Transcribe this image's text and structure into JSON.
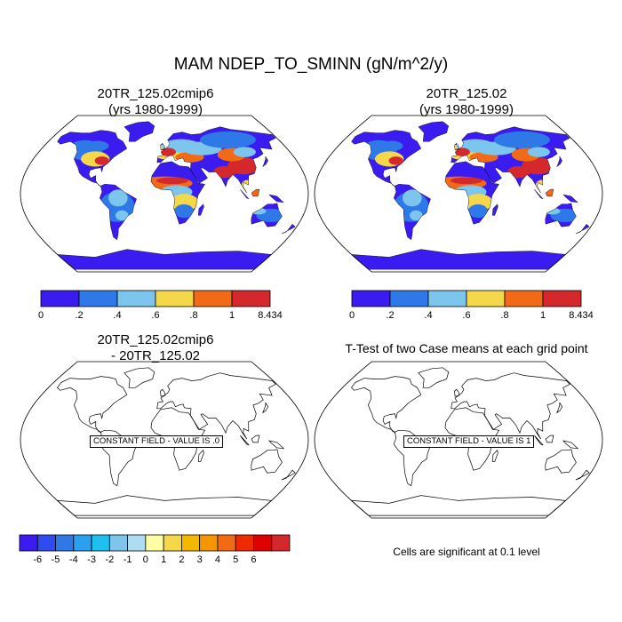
{
  "title": "MAM NDEP_TO_SMINN (gN/m^2/y)",
  "panels": {
    "tl": {
      "line1": "20TR_125.02cmip6",
      "line2": "(yrs 1980-1999)"
    },
    "tr": {
      "line1": "20TR_125.02",
      "line2": "(yrs 1980-1999)"
    },
    "bl": {
      "line1": "20TR_125.02cmip6",
      "line2": "- 20TR_125.02",
      "label": "CONSTANT FIELD - VALUE IS .0"
    },
    "br": {
      "line1": "T-Test of two Case means at each grid point",
      "label": "CONSTANT FIELD - VALUE IS 1"
    }
  },
  "note": "Cells are significant at 0.1 level",
  "colorbar_top": {
    "colors": [
      "#3a1cf0",
      "#2f78e8",
      "#7cc6ee",
      "#f5d84a",
      "#f26a16",
      "#d4282c"
    ],
    "labels": [
      "0",
      ".2",
      ".4",
      ".6",
      ".8",
      "1",
      "8.434"
    ]
  },
  "colorbar_diff": {
    "colors": [
      "#3a1cf0",
      "#2f4cf0",
      "#2f78e8",
      "#2aa0ee",
      "#1ec0f0",
      "#7cc6ee",
      "#b0dcf2",
      "#ffffa6",
      "#f5d84a",
      "#f5b800",
      "#f59500",
      "#f26a16",
      "#ee2a00",
      "#e00000",
      "#d4282c"
    ],
    "labels": [
      "-6",
      "-5",
      "-4",
      "-3",
      "-2",
      "-1",
      "0",
      "1",
      "2",
      "3",
      "4",
      "5",
      "6"
    ]
  },
  "chart_data": [
    {
      "type": "heatmap",
      "title": "20TR_125.02cmip6 (yrs 1980-1999)",
      "variable": "NDEP_TO_SMINN",
      "units": "gN/m^2/y",
      "levels": [
        0,
        0.2,
        0.4,
        0.6,
        0.8,
        1,
        8.434
      ]
    },
    {
      "type": "heatmap",
      "title": "20TR_125.02 (yrs 1980-1999)",
      "variable": "NDEP_TO_SMINN",
      "units": "gN/m^2/y",
      "levels": [
        0,
        0.2,
        0.4,
        0.6,
        0.8,
        1,
        8.434
      ]
    },
    {
      "type": "heatmap",
      "title": "20TR_125.02cmip6 - 20TR_125.02",
      "constant_value": 0,
      "levels": [
        -6,
        -5,
        -4,
        -3,
        -2,
        -1,
        0,
        1,
        2,
        3,
        4,
        5,
        6
      ]
    },
    {
      "type": "heatmap",
      "title": "T-Test of two Case means at each grid point",
      "constant_value": 1
    }
  ]
}
